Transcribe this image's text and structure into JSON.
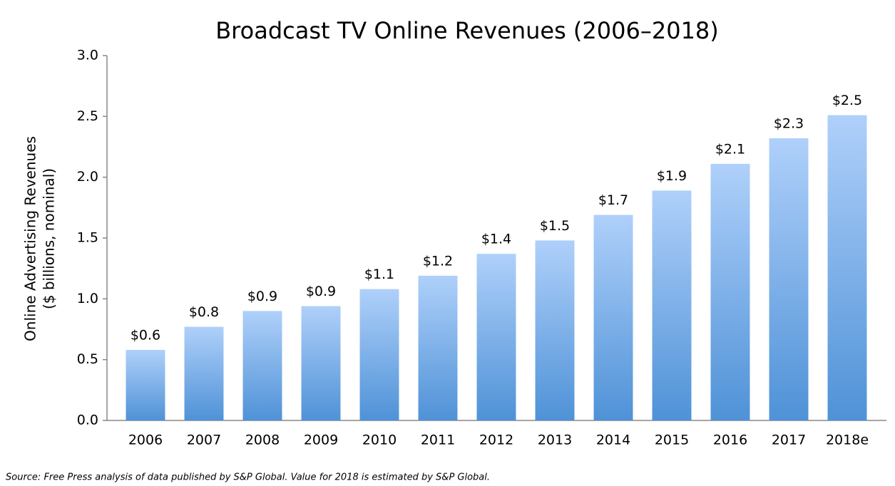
{
  "chart_data": {
    "type": "bar",
    "title": "Broadcast TV Online Revenues (2006–2018)",
    "y_label": [
      "Online Advertising Revenues",
      "($ billions, nominal)"
    ],
    "categories": [
      "2006",
      "2007",
      "2008",
      "2009",
      "2010",
      "2011",
      "2012",
      "2013",
      "2014",
      "2015",
      "2016",
      "2017",
      "2018e"
    ],
    "values": [
      0.58,
      0.77,
      0.9,
      0.94,
      1.08,
      1.19,
      1.37,
      1.48,
      1.69,
      1.89,
      2.11,
      2.32,
      2.51
    ],
    "value_labels": [
      "$0.6",
      "$0.8",
      "$0.9",
      "$0.9",
      "$1.1",
      "$1.2",
      "$1.4",
      "$1.5",
      "$1.7",
      "$1.9",
      "$2.1",
      "$2.3",
      "$2.5"
    ],
    "color": [
      "#afd0fa",
      "#4f92d7"
    ],
    "ylim": [
      0,
      3
    ],
    "yticks": [
      {
        "value": 0,
        "label": "0.0"
      },
      0.5,
      {
        "value": 1,
        "label": "1.0"
      },
      1.5,
      {
        "value": 2,
        "label": "2.0"
      },
      2.5,
      {
        "value": 3,
        "label": "3.0"
      }
    ],
    "grid": false,
    "source": "Source:  Free Press analysis of data published by S&P Global. Value for 2018 is estimated by S&P Global."
  }
}
